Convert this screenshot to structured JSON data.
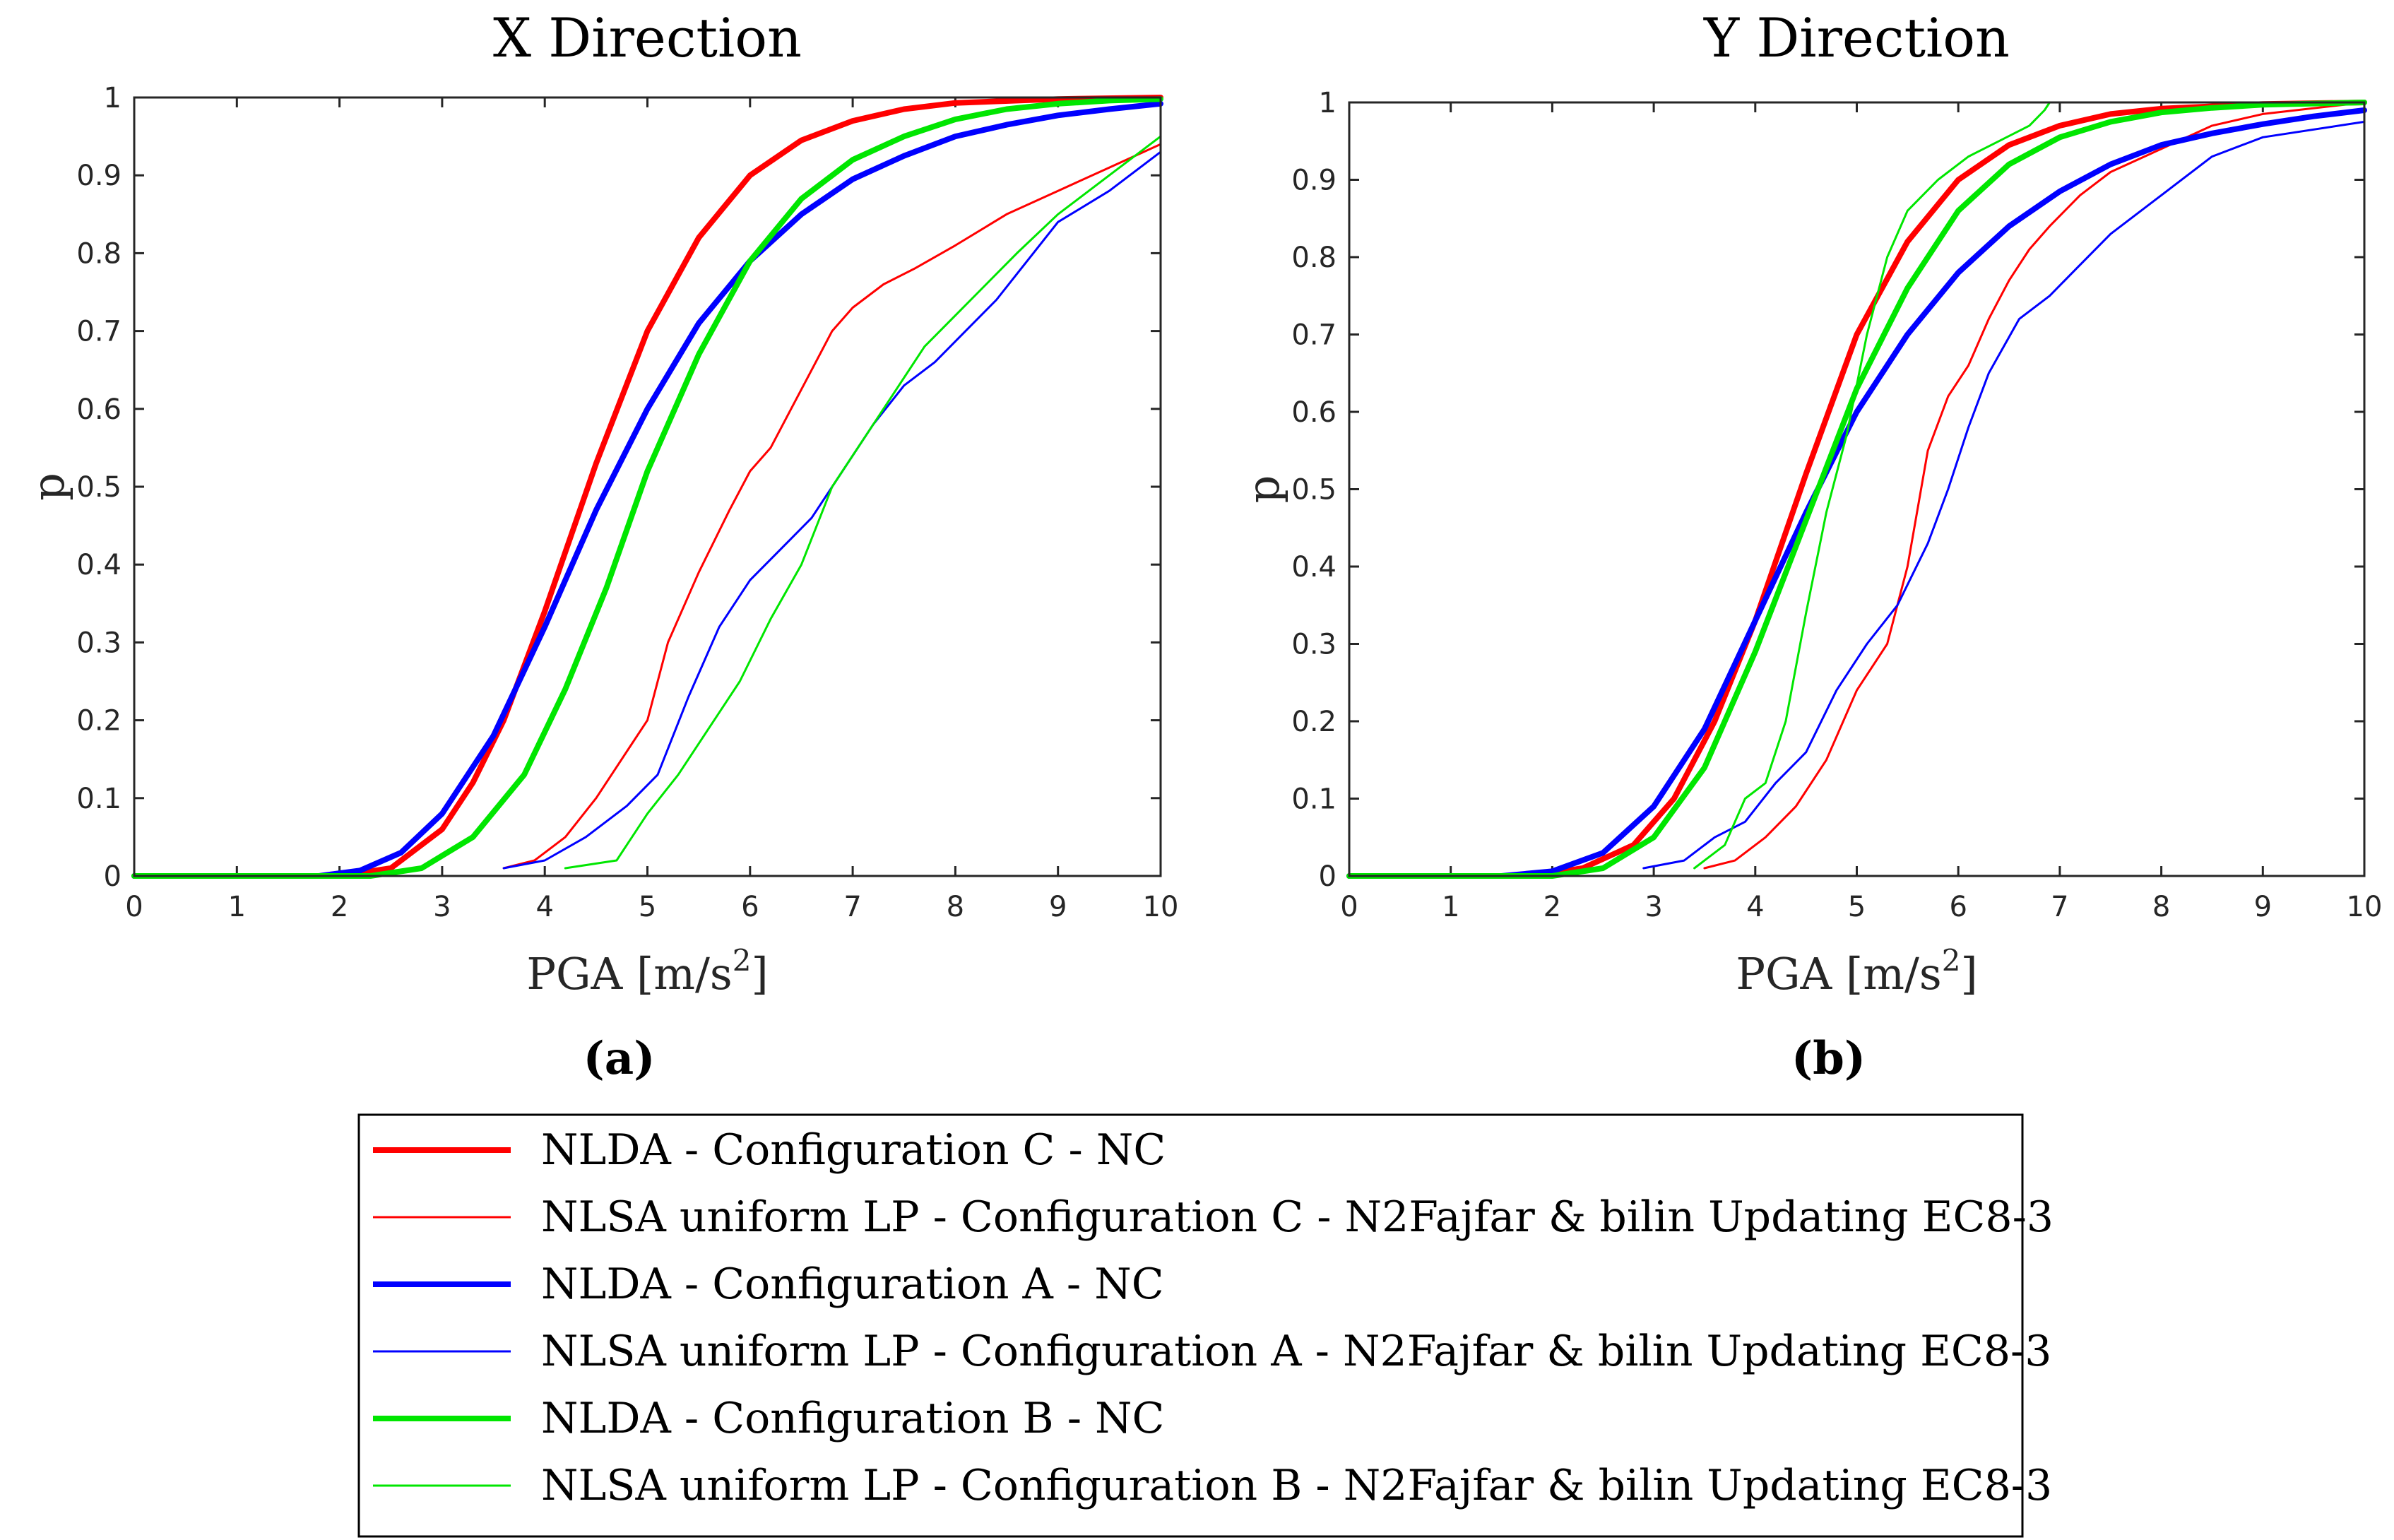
{
  "chart_data": [
    {
      "type": "line",
      "panel_label": "(a)",
      "title": "X Direction",
      "xlabel": "PGA [m/s",
      "xlabel_sup": "2",
      "xlabel_end": "]",
      "ylabel": "p",
      "xlim": [
        0,
        10
      ],
      "ylim": [
        0,
        1
      ],
      "xticks": [
        0,
        1,
        2,
        3,
        4,
        5,
        6,
        7,
        8,
        9,
        10
      ],
      "yticks": [
        0,
        0.1,
        0.2,
        0.3,
        0.4,
        0.5,
        0.6,
        0.7,
        0.8,
        0.9,
        1
      ],
      "ytick_labels": [
        "0",
        "0.1",
        "0.2",
        "0.3",
        "0.4",
        "0.5",
        "0.6",
        "0.7",
        "0.8",
        "0.9",
        "1"
      ],
      "series": [
        {
          "name": "NLDA - Configuration C - NC",
          "color": "#ff0000",
          "style": "thick",
          "x": [
            0,
            2,
            2.5,
            3,
            3.3,
            3.6,
            4,
            4.5,
            5,
            5.5,
            6,
            6.5,
            7,
            7.5,
            8,
            9,
            10
          ],
          "y": [
            0,
            0,
            0.01,
            0.06,
            0.12,
            0.2,
            0.34,
            0.53,
            0.7,
            0.82,
            0.9,
            0.945,
            0.97,
            0.985,
            0.993,
            0.998,
            1.0
          ]
        },
        {
          "name": "NLSA uniform LP - Configuration C - N2Fajfar & bilin Updating EC8-3",
          "color": "#ff0000",
          "style": "thin",
          "x": [
            3.6,
            3.9,
            4.2,
            4.5,
            4.8,
            5.0,
            5.2,
            5.5,
            5.8,
            6.0,
            6.2,
            6.4,
            6.6,
            6.8,
            7.0,
            7.3,
            7.6,
            8.0,
            8.5,
            9.0,
            9.5,
            10.0
          ],
          "y": [
            0.01,
            0.02,
            0.05,
            0.1,
            0.16,
            0.2,
            0.3,
            0.39,
            0.47,
            0.52,
            0.55,
            0.6,
            0.65,
            0.7,
            0.73,
            0.76,
            0.78,
            0.81,
            0.85,
            0.88,
            0.91,
            0.94
          ]
        },
        {
          "name": "NLDA - Configuration A - NC",
          "color": "#0000ff",
          "style": "thick",
          "x": [
            0,
            1.8,
            2.2,
            2.6,
            3.0,
            3.5,
            4.0,
            4.5,
            5.0,
            5.5,
            6.0,
            6.5,
            7.0,
            7.5,
            8.0,
            8.5,
            9.0,
            9.5,
            10.0
          ],
          "y": [
            0,
            0,
            0.007,
            0.03,
            0.08,
            0.18,
            0.32,
            0.47,
            0.6,
            0.71,
            0.79,
            0.85,
            0.895,
            0.925,
            0.95,
            0.965,
            0.977,
            0.985,
            0.992
          ]
        },
        {
          "name": "NLSA uniform LP - Configuration A - N2Fajfar & bilin Updating EC8-3",
          "color": "#0000ff",
          "style": "thin",
          "x": [
            3.6,
            4.0,
            4.4,
            4.8,
            5.1,
            5.4,
            5.7,
            6.0,
            6.3,
            6.6,
            6.9,
            7.2,
            7.5,
            7.8,
            8.1,
            8.4,
            8.7,
            9.0,
            9.5,
            10.0
          ],
          "y": [
            0.01,
            0.02,
            0.05,
            0.09,
            0.13,
            0.23,
            0.32,
            0.38,
            0.42,
            0.46,
            0.52,
            0.58,
            0.63,
            0.66,
            0.7,
            0.74,
            0.79,
            0.84,
            0.88,
            0.93
          ]
        },
        {
          "name": "NLDA - Configuration B - NC",
          "color": "#00e600",
          "style": "thick",
          "x": [
            0,
            2.3,
            2.8,
            3.3,
            3.8,
            4.2,
            4.6,
            5.0,
            5.5,
            6.0,
            6.5,
            7.0,
            7.5,
            8.0,
            8.5,
            9.0,
            9.5,
            10.0
          ],
          "y": [
            0,
            0,
            0.01,
            0.05,
            0.13,
            0.24,
            0.37,
            0.52,
            0.67,
            0.79,
            0.87,
            0.92,
            0.95,
            0.972,
            0.985,
            0.992,
            0.996,
            0.998
          ]
        },
        {
          "name": "NLSA uniform LP - Configuration B - N2Fajfar & bilin Updating EC8-3",
          "color": "#00e600",
          "style": "thin",
          "x": [
            4.2,
            4.7,
            5.0,
            5.3,
            5.6,
            5.9,
            6.2,
            6.5,
            6.8,
            7.1,
            7.4,
            7.7,
            8.0,
            8.3,
            8.6,
            9.0,
            9.5,
            10.0
          ],
          "y": [
            0.01,
            0.02,
            0.08,
            0.13,
            0.19,
            0.25,
            0.33,
            0.4,
            0.5,
            0.56,
            0.62,
            0.68,
            0.72,
            0.76,
            0.8,
            0.85,
            0.9,
            0.95
          ]
        }
      ]
    },
    {
      "type": "line",
      "panel_label": "(b)",
      "title": "Y Direction",
      "xlabel": "PGA [m/s",
      "xlabel_sup": "2",
      "xlabel_end": "]",
      "ylabel": "p",
      "xlim": [
        0,
        10
      ],
      "ylim": [
        0,
        1
      ],
      "xticks": [
        0,
        1,
        2,
        3,
        4,
        5,
        6,
        7,
        8,
        9,
        10
      ],
      "yticks": [
        0,
        0.1,
        0.2,
        0.3,
        0.4,
        0.5,
        0.6,
        0.7,
        0.8,
        0.9,
        1
      ],
      "ytick_labels": [
        "0",
        "0.1",
        "0.2",
        "0.3",
        "0.4",
        "0.5",
        "0.6",
        "0.7",
        "0.8",
        "0.9",
        "1"
      ],
      "series": [
        {
          "name": "NLDA - Configuration C - NC",
          "color": "#ff0000",
          "style": "thick",
          "x": [
            0,
            1.8,
            2.3,
            2.8,
            3.2,
            3.6,
            4.0,
            4.5,
            5.0,
            5.5,
            6.0,
            6.5,
            7.0,
            7.5,
            8.0,
            9.0,
            10.0
          ],
          "y": [
            0,
            0,
            0.01,
            0.04,
            0.1,
            0.2,
            0.33,
            0.52,
            0.7,
            0.82,
            0.9,
            0.945,
            0.97,
            0.985,
            0.992,
            0.998,
            1.0
          ]
        },
        {
          "name": "NLSA uniform LP - Configuration C - N2Fajfar & bilin Updating EC8-3",
          "color": "#ff0000",
          "style": "thin",
          "x": [
            3.5,
            3.8,
            4.1,
            4.4,
            4.7,
            5.0,
            5.3,
            5.5,
            5.7,
            5.9,
            6.1,
            6.3,
            6.5,
            6.7,
            6.9,
            7.2,
            7.5,
            8.0,
            8.5,
            9.0,
            10.0
          ],
          "y": [
            0.01,
            0.02,
            0.05,
            0.09,
            0.15,
            0.24,
            0.3,
            0.4,
            0.55,
            0.62,
            0.66,
            0.72,
            0.77,
            0.81,
            0.84,
            0.88,
            0.91,
            0.94,
            0.97,
            0.985,
            1.0
          ]
        },
        {
          "name": "NLDA - Configuration A - NC",
          "color": "#0000ff",
          "style": "thick",
          "x": [
            0,
            1.5,
            2.0,
            2.5,
            3.0,
            3.5,
            4.0,
            4.5,
            5.0,
            5.5,
            6.0,
            6.5,
            7.0,
            7.5,
            8.0,
            8.5,
            9.0,
            9.5,
            10.0
          ],
          "y": [
            0,
            0,
            0.006,
            0.03,
            0.09,
            0.19,
            0.33,
            0.47,
            0.6,
            0.7,
            0.78,
            0.84,
            0.885,
            0.92,
            0.945,
            0.96,
            0.972,
            0.982,
            0.99
          ]
        },
        {
          "name": "NLSA uniform LP - Configuration A - N2Fajfar & bilin Updating EC8-3",
          "color": "#0000ff",
          "style": "thin",
          "x": [
            2.9,
            3.3,
            3.6,
            3.9,
            4.2,
            4.5,
            4.8,
            5.1,
            5.4,
            5.7,
            5.9,
            6.1,
            6.3,
            6.6,
            6.9,
            7.2,
            7.5,
            8.0,
            8.5,
            9.0,
            10.0
          ],
          "y": [
            0.01,
            0.02,
            0.05,
            0.07,
            0.12,
            0.16,
            0.24,
            0.3,
            0.35,
            0.43,
            0.5,
            0.58,
            0.65,
            0.72,
            0.75,
            0.79,
            0.83,
            0.88,
            0.93,
            0.955,
            0.975
          ]
        },
        {
          "name": "NLDA - Configuration B - NC",
          "color": "#00e600",
          "style": "thick",
          "x": [
            0,
            2.0,
            2.5,
            3.0,
            3.5,
            4.0,
            4.5,
            5.0,
            5.5,
            6.0,
            6.5,
            7.0,
            7.5,
            8.0,
            8.5,
            9.0,
            10.0
          ],
          "y": [
            0,
            0,
            0.01,
            0.05,
            0.14,
            0.29,
            0.46,
            0.63,
            0.76,
            0.86,
            0.92,
            0.955,
            0.975,
            0.987,
            0.993,
            0.997,
            1.0
          ]
        },
        {
          "name": "NLSA uniform LP - Configuration B - N2Fajfar & bilin Updating EC8-3",
          "color": "#00e600",
          "style": "thin",
          "x": [
            3.4,
            3.7,
            3.9,
            4.1,
            4.3,
            4.5,
            4.7,
            4.9,
            5.1,
            5.3,
            5.5,
            5.8,
            6.1,
            6.4,
            6.7,
            6.85,
            6.9
          ],
          "y": [
            0.01,
            0.04,
            0.1,
            0.12,
            0.2,
            0.34,
            0.47,
            0.57,
            0.7,
            0.8,
            0.86,
            0.9,
            0.93,
            0.95,
            0.97,
            0.99,
            1.0
          ]
        }
      ]
    }
  ],
  "legend": [
    {
      "label": "NLDA - Configuration C - NC",
      "color": "#ff0000",
      "style": "thick"
    },
    {
      "label": "NLSA uniform LP - Configuration C - N2Fajfar & bilin Updating EC8-3",
      "color": "#ff0000",
      "style": "thin"
    },
    {
      "label": "NLDA - Configuration A - NC",
      "color": "#0000ff",
      "style": "thick"
    },
    {
      "label": "NLSA uniform LP - Configuration A - N2Fajfar & bilin Updating EC8-3",
      "color": "#0000ff",
      "style": "thin"
    },
    {
      "label": "NLDA - Configuration B - NC",
      "color": "#00e600",
      "style": "thick"
    },
    {
      "label": "NLSA uniform LP - Configuration B - N2Fajfar & bilin Updating EC8-3",
      "color": "#00e600",
      "style": "thin"
    }
  ]
}
